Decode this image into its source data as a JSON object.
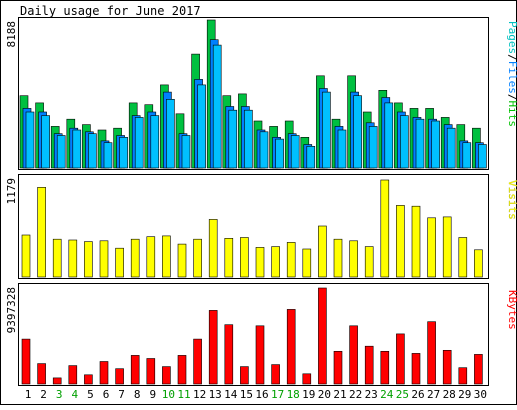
{
  "chart_data": {
    "type": "bar",
    "title": "Daily usage for June 2017",
    "categories": [
      "1",
      "2",
      "3",
      "4",
      "5",
      "6",
      "7",
      "8",
      "9",
      "10",
      "11",
      "12",
      "13",
      "14",
      "15",
      "16",
      "17",
      "18",
      "19",
      "20",
      "21",
      "22",
      "23",
      "24",
      "25",
      "26",
      "27",
      "28",
      "29",
      "30"
    ],
    "weekend_categories": [
      "3",
      "4",
      "10",
      "11",
      "17",
      "18",
      "24",
      "25"
    ],
    "panels": [
      {
        "name": "hits",
        "ymax_label": "8188",
        "ymax": 8188,
        "legend": [
          "Pages",
          "Files",
          "Hits"
        ],
        "legend_colors": [
          "#00C0C0",
          "#0080FF",
          "#00C000"
        ],
        "series": [
          {
            "name": "Hits",
            "color": "#00C040",
            "values": [
              4000,
              3600,
              2300,
              2700,
              2400,
              2100,
              2200,
              3600,
              3500,
              4600,
              3000,
              6300,
              8188,
              4000,
              4100,
              2600,
              2300,
              2600,
              1700,
              5100,
              2700,
              5100,
              3100,
              4300,
              3600,
              3300,
              3300,
              2800,
              2400,
              2200
            ]
          },
          {
            "name": "Files",
            "color": "#0080FF",
            "values": [
              3300,
              3100,
              1900,
              2200,
              2000,
              1500,
              1800,
              2900,
              3100,
              4200,
              1900,
              4900,
              7100,
              3400,
              3400,
              2100,
              1700,
              1900,
              1300,
              4400,
              2300,
              4200,
              2500,
              3900,
              3100,
              2800,
              2700,
              2400,
              1500,
              1400
            ]
          },
          {
            "name": "Pages",
            "color": "#00C0FF",
            "values": [
              3100,
              2900,
              1800,
              2100,
              1900,
              1400,
              1700,
              2800,
              2900,
              3800,
              1800,
              4600,
              6800,
              3200,
              3200,
              2000,
              1600,
              1800,
              1200,
              4200,
              2100,
              4000,
              2300,
              3600,
              2900,
              2700,
              2600,
              2200,
              1400,
              1300
            ]
          }
        ]
      },
      {
        "name": "visits",
        "ymax_label": "1179",
        "ymax": 1179,
        "legend": [
          "Visits"
        ],
        "legend_colors": [
          "#FFFF00"
        ],
        "series": [
          {
            "name": "Visits",
            "color": "#FFFF00",
            "values": [
              510,
              1090,
              460,
              450,
              430,
              440,
              350,
              460,
              490,
              500,
              400,
              460,
              700,
              470,
              480,
              360,
              370,
              420,
              340,
              620,
              460,
              440,
              370,
              1179,
              870,
              860,
              720,
              730,
              480,
              330
            ]
          }
        ]
      },
      {
        "name": "kbytes",
        "ymax_label": "9397328",
        "ymax": 9397328,
        "legend": [
          "KBytes"
        ],
        "legend_colors": [
          "#FF0000"
        ],
        "series": [
          {
            "name": "KBytes",
            "color": "#FF0000",
            "values": [
              4400000,
              2000000,
              600000,
              1800000,
              900000,
              2200000,
              1500000,
              2800000,
              2500000,
              1700000,
              2800000,
              4400000,
              7200000,
              5800000,
              1700000,
              5700000,
              1900000,
              7300000,
              1000000,
              9397328,
              3200000,
              5700000,
              3700000,
              3200000,
              4900000,
              3000000,
              6100000,
              3300000,
              1600000,
              2900000
            ]
          }
        ]
      }
    ]
  }
}
